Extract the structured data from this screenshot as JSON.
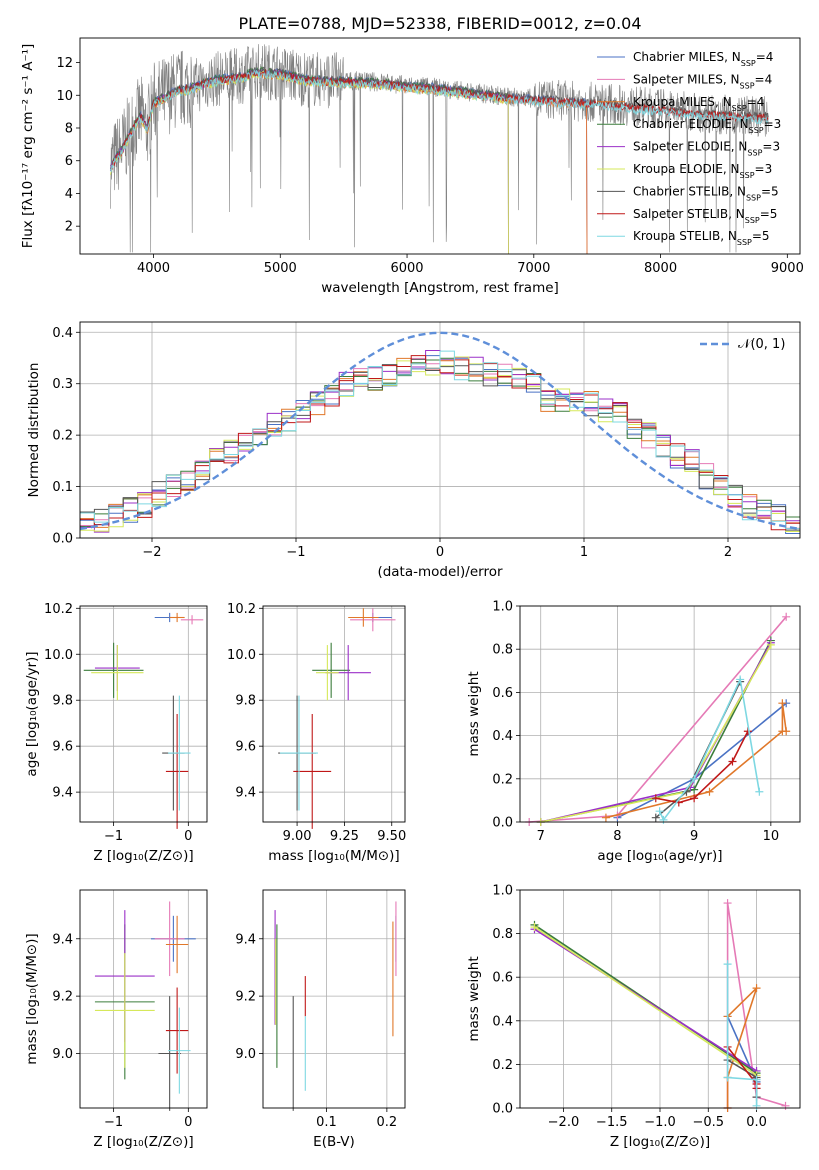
{
  "colors": {
    "Chabrier MILES": "#4a72c4",
    "Salpeter MILES": "#e57ab6",
    "Kroupa MILES": "#e0782a",
    "Chabrier ELODIE": "#3b7d3b",
    "Salpeter ELODIE": "#9b30c8",
    "Kroupa ELODIE": "#d6e85a",
    "Chabrier STELIB": "#555555",
    "Salpeter STELIB": "#c01818",
    "Kroupa STELIB": "#7ed8e2",
    "data": "#808080",
    "normal": "#5f8fd9"
  },
  "chart_data": [
    {
      "type": "line",
      "title": "PLATE=0788, MJD=52338, FIBERID=0012, z=0.04",
      "xlabel": "wavelength [Angstrom, rest frame]",
      "ylabel": "Flux [fλ10⁻¹⁷ erg cm⁻² s⁻¹ A⁻¹]",
      "xlim": [
        3420,
        9100
      ],
      "ylim": [
        0.3,
        13.5
      ],
      "xticks": [
        4000,
        5000,
        6000,
        7000,
        8000,
        9000
      ],
      "yticks": [
        2,
        4,
        6,
        8,
        10,
        12
      ],
      "legend_location": "upper right",
      "series": [
        {
          "name": "Chabrier MILES",
          "nssp": "4"
        },
        {
          "name": "Salpeter MILES",
          "nssp": "4"
        },
        {
          "name": "Kroupa MILES",
          "nssp": "4"
        },
        {
          "name": "Chabrier ELODIE",
          "nssp": "3"
        },
        {
          "name": "Salpeter ELODIE",
          "nssp": "3"
        },
        {
          "name": "Kroupa ELODIE",
          "nssp": "3"
        },
        {
          "name": "Chabrier STELIB",
          "nssp": "5"
        },
        {
          "name": "Salpeter STELIB",
          "nssp": "5"
        },
        {
          "name": "Kroupa STELIB",
          "nssp": "5"
        }
      ],
      "model_continuum": {
        "x": [
          3650,
          3700,
          3750,
          3800,
          3850,
          3900,
          3950,
          4000,
          4100,
          4200,
          4300,
          4400,
          4500,
          4700,
          4800,
          5000,
          5200,
          5500,
          5800,
          6000,
          6200,
          6400,
          6600,
          6800,
          7000,
          7200,
          7400,
          7600,
          7800,
          8000,
          8200,
          8400,
          8600,
          8800
        ],
        "y": [
          5.4,
          6.2,
          6.7,
          7.5,
          8.2,
          8.8,
          8.0,
          9.6,
          10.0,
          10.4,
          10.5,
          10.8,
          11.0,
          11.2,
          11.5,
          11.4,
          11.0,
          10.9,
          10.8,
          10.6,
          10.5,
          10.3,
          10.1,
          9.9,
          9.8,
          9.7,
          9.6,
          9.5,
          9.3,
          9.2,
          9.0,
          8.9,
          8.8,
          8.7
        ]
      }
    },
    {
      "type": "bar",
      "xlabel": "(data-model)/error",
      "ylabel": "Normed distribution",
      "xlim": [
        -2.5,
        2.5
      ],
      "ylim": [
        0,
        0.42
      ],
      "xticks": [
        -2,
        -1,
        0,
        1,
        2
      ],
      "yticks": [
        0.0,
        0.1,
        0.2,
        0.3,
        0.4
      ],
      "reference_curve": "𝒩(0, 1)",
      "bin_width": 0.1,
      "histogram_centers": [
        -2.45,
        -2.35,
        -2.25,
        -2.15,
        -2.05,
        -1.95,
        -1.85,
        -1.75,
        -1.65,
        -1.55,
        -1.45,
        -1.35,
        -1.25,
        -1.15,
        -1.05,
        -0.95,
        -0.85,
        -0.75,
        -0.65,
        -0.55,
        -0.45,
        -0.35,
        -0.25,
        -0.15,
        -0.05,
        0.05,
        0.15,
        0.25,
        0.35,
        0.45,
        0.55,
        0.65,
        0.75,
        0.85,
        0.95,
        1.05,
        1.15,
        1.25,
        1.35,
        1.45,
        1.55,
        1.65,
        1.75,
        1.85,
        1.95,
        2.05,
        2.15,
        2.25,
        2.35,
        2.45
      ],
      "histogram_values": [
        0.03,
        0.035,
        0.045,
        0.055,
        0.065,
        0.085,
        0.1,
        0.11,
        0.13,
        0.15,
        0.17,
        0.19,
        0.2,
        0.22,
        0.23,
        0.25,
        0.26,
        0.28,
        0.3,
        0.31,
        0.31,
        0.32,
        0.33,
        0.34,
        0.34,
        0.34,
        0.33,
        0.33,
        0.32,
        0.32,
        0.31,
        0.3,
        0.27,
        0.27,
        0.26,
        0.26,
        0.25,
        0.24,
        0.21,
        0.2,
        0.18,
        0.16,
        0.15,
        0.12,
        0.1,
        0.08,
        0.06,
        0.05,
        0.04,
        0.03
      ]
    },
    {
      "type": "scatter",
      "xlabel": "Z [log₁₀(Z/Z⊙)]",
      "ylabel": "age  [log₁₀(age/yr)]",
      "xlim": [
        -1.45,
        0.25
      ],
      "ylim": [
        9.27,
        10.21
      ],
      "xticks": [
        -1,
        0
      ],
      "yticks": [
        9.4,
        9.6,
        9.8,
        10.0,
        10.2
      ],
      "points": [
        {
          "series": "Chabrier MILES",
          "x": -0.25,
          "y": 10.16,
          "xerr": 0.2,
          "yerr": 0.02
        },
        {
          "series": "Salpeter MILES",
          "x": 0.05,
          "y": 10.15,
          "xerr": 0.15,
          "yerr": 0.02
        },
        {
          "series": "Kroupa MILES",
          "x": -0.15,
          "y": 10.16,
          "xerr": 0.1,
          "yerr": 0.02
        },
        {
          "series": "Chabrier ELODIE",
          "x": -1.0,
          "y": 9.93,
          "xerr": 0.4,
          "yerr": 0.12
        },
        {
          "series": "Salpeter ELODIE",
          "x": -0.95,
          "y": 9.94,
          "xerr": 0.3,
          "yerr": 0.1
        },
        {
          "series": "Kroupa ELODIE",
          "x": -0.95,
          "y": 9.92,
          "xerr": 0.35,
          "yerr": 0.12
        },
        {
          "series": "Chabrier STELIB",
          "x": -0.2,
          "y": 9.57,
          "xerr": 0.15,
          "yerr": 0.25
        },
        {
          "series": "Salpeter STELIB",
          "x": -0.15,
          "y": 9.49,
          "xerr": 0.15,
          "yerr": 0.25
        },
        {
          "series": "Kroupa STELIB",
          "x": -0.12,
          "y": 9.57,
          "xerr": 0.15,
          "yerr": 0.25
        }
      ]
    },
    {
      "type": "scatter",
      "xlabel": "mass [log₁₀(M/M⊙)]",
      "ylabel": "",
      "xlim": [
        8.82,
        9.57
      ],
      "ylim": [
        9.27,
        10.21
      ],
      "xticks": [
        9.0,
        9.25,
        9.5
      ],
      "yticks": [
        9.4,
        9.6,
        9.8,
        10.0,
        10.2
      ],
      "points": [
        {
          "series": "Chabrier MILES",
          "x": 9.4,
          "y": 10.16,
          "xerr": 0.1,
          "yerr": 0.02
        },
        {
          "series": "Salpeter MILES",
          "x": 9.4,
          "y": 10.15,
          "xerr": 0.12,
          "yerr": 0.05
        },
        {
          "series": "Kroupa MILES",
          "x": 9.35,
          "y": 10.16,
          "xerr": 0.08,
          "yerr": 0.04
        },
        {
          "series": "Chabrier ELODIE",
          "x": 9.18,
          "y": 9.93,
          "xerr": 0.1,
          "yerr": 0.12
        },
        {
          "series": "Salpeter ELODIE",
          "x": 9.27,
          "y": 9.92,
          "xerr": 0.12,
          "yerr": 0.12
        },
        {
          "series": "Kroupa ELODIE",
          "x": 9.16,
          "y": 9.92,
          "xerr": 0.06,
          "yerr": 0.12
        },
        {
          "series": "Chabrier STELIB",
          "x": 9.0,
          "y": 9.57,
          "xerr": 0.1,
          "yerr": 0.25
        },
        {
          "series": "Salpeter STELIB",
          "x": 9.08,
          "y": 9.49,
          "xerr": 0.1,
          "yerr": 0.25
        },
        {
          "series": "Kroupa STELIB",
          "x": 9.01,
          "y": 9.57,
          "xerr": 0.1,
          "yerr": 0.25
        }
      ]
    },
    {
      "type": "line",
      "xlabel": "age  [log₁₀(age/yr)]",
      "ylabel": "mass weight",
      "xlim": [
        6.73,
        10.38
      ],
      "ylim": [
        0,
        1.0
      ],
      "xticks": [
        7,
        8,
        9,
        10
      ],
      "yticks": [
        0.0,
        0.2,
        0.4,
        0.6,
        0.8,
        1.0
      ],
      "series": [
        {
          "name": "Chabrier MILES",
          "x": [
            8.0,
            9.0,
            10.2
          ],
          "y": [
            0.02,
            0.2,
            0.55
          ]
        },
        {
          "name": "Salpeter MILES",
          "x": [
            6.85,
            8.0,
            10.2
          ],
          "y": [
            0.0,
            0.03,
            0.95
          ]
        },
        {
          "name": "Kroupa MILES",
          "x": [
            7.85,
            9.2,
            10.15,
            10.15,
            10.2
          ],
          "y": [
            0.02,
            0.14,
            0.42,
            0.55,
            0.42
          ]
        },
        {
          "name": "Chabrier ELODIE",
          "x": [
            7.0,
            9.0,
            10.0
          ],
          "y": [
            0.0,
            0.15,
            0.84
          ]
        },
        {
          "name": "Salpeter ELODIE",
          "x": [
            7.0,
            8.95,
            10.0
          ],
          "y": [
            0.0,
            0.16,
            0.83
          ]
        },
        {
          "name": "Kroupa ELODIE",
          "x": [
            7.0,
            8.9,
            10.0
          ],
          "y": [
            0.0,
            0.14,
            0.82
          ]
        },
        {
          "name": "Chabrier STELIB",
          "x": [
            8.5,
            8.9,
            9.6
          ],
          "y": [
            0.02,
            0.14,
            0.65
          ]
        },
        {
          "name": "Salpeter STELIB",
          "x": [
            8.5,
            8.8,
            9.0,
            9.5,
            9.7
          ],
          "y": [
            0.11,
            0.09,
            0.11,
            0.28,
            0.42
          ]
        },
        {
          "name": "Kroupa STELIB",
          "x": [
            8.55,
            8.6,
            9.0,
            9.6,
            9.85
          ],
          "y": [
            0.05,
            0.01,
            0.2,
            0.66,
            0.14
          ]
        }
      ]
    },
    {
      "type": "scatter",
      "xlabel": "Z [log₁₀(Z/Z⊙)]",
      "ylabel": "mass [log₁₀(M/M⊙)]",
      "xlim": [
        -1.45,
        0.25
      ],
      "ylim": [
        8.81,
        9.57
      ],
      "xticks": [
        -1,
        0
      ],
      "yticks": [
        9.0,
        9.2,
        9.4
      ],
      "points": [
        {
          "series": "Chabrier MILES",
          "x": -0.2,
          "y": 9.4,
          "xerr": 0.3,
          "yerr": 0.08
        },
        {
          "series": "Salpeter MILES",
          "x": -0.25,
          "y": 9.4,
          "xerr": 0.2,
          "yerr": 0.13
        },
        {
          "series": "Kroupa MILES",
          "x": -0.15,
          "y": 9.38,
          "xerr": 0.15,
          "yerr": 0.1
        },
        {
          "series": "Chabrier ELODIE",
          "x": -0.85,
          "y": 9.18,
          "xerr": 0.4,
          "yerr": 0.27
        },
        {
          "series": "Salpeter ELODIE",
          "x": -0.85,
          "y": 9.27,
          "xerr": 0.4,
          "yerr": 0.23
        },
        {
          "series": "Kroupa ELODIE",
          "x": -0.85,
          "y": 9.15,
          "xerr": 0.4,
          "yerr": 0.2
        },
        {
          "series": "Chabrier STELIB",
          "x": -0.25,
          "y": 9.0,
          "xerr": 0.15,
          "yerr": 0.2
        },
        {
          "series": "Salpeter STELIB",
          "x": -0.15,
          "y": 9.08,
          "xerr": 0.15,
          "yerr": 0.15
        },
        {
          "series": "Kroupa STELIB",
          "x": -0.12,
          "y": 9.01,
          "xerr": 0.15,
          "yerr": 0.15
        }
      ]
    },
    {
      "type": "scatter",
      "xlabel": "E(B-V)",
      "ylabel": "",
      "xlim": [
        -0.005,
        0.23
      ],
      "ylim": [
        8.81,
        9.57
      ],
      "xticks": [
        0.1,
        0.2
      ],
      "yticks": [
        9.0,
        9.2,
        9.4
      ],
      "points": [
        {
          "series": "Chabrier MILES",
          "x": 0.215,
          "y": 9.4,
          "yerr": 0.08
        },
        {
          "series": "Salpeter MILES",
          "x": 0.215,
          "y": 9.4,
          "yerr": 0.13
        },
        {
          "series": "Kroupa MILES",
          "x": 0.21,
          "y": 9.26,
          "yerr": 0.2
        },
        {
          "series": "Chabrier ELODIE",
          "x": 0.018,
          "y": 9.2,
          "yerr": 0.25
        },
        {
          "series": "Salpeter ELODIE",
          "x": 0.015,
          "y": 9.3,
          "yerr": 0.2
        },
        {
          "series": "Kroupa ELODIE",
          "x": 0.016,
          "y": 9.25,
          "yerr": 0.15
        },
        {
          "series": "Chabrier STELIB",
          "x": 0.045,
          "y": 9.0,
          "yerr": 0.2
        },
        {
          "series": "Salpeter STELIB",
          "x": 0.065,
          "y": 9.2,
          "yerr": 0.07
        },
        {
          "series": "Kroupa STELIB",
          "x": 0.065,
          "y": 9.0,
          "yerr": 0.13
        }
      ]
    },
    {
      "type": "line",
      "xlabel": "Z [log₁₀(Z/Z⊙)]",
      "ylabel": "mass weight",
      "xlim": [
        -2.45,
        0.45
      ],
      "ylim": [
        0,
        1.0
      ],
      "xticks": [
        -2.0,
        -1.5,
        -1.0,
        -0.5,
        0.0
      ],
      "yticks": [
        0.0,
        0.2,
        0.4,
        0.6,
        0.8,
        1.0
      ],
      "series": [
        {
          "name": "Chabrier MILES",
          "x": [
            -0.3,
            0.0
          ],
          "y": [
            0.42,
            0.12
          ]
        },
        {
          "name": "Salpeter MILES",
          "x": [
            -0.3,
            -0.3,
            0.0,
            0.3
          ],
          "y": [
            0.0,
            0.94,
            0.05,
            0.01
          ]
        },
        {
          "name": "Kroupa MILES",
          "x": [
            -0.3,
            0.0,
            -0.3,
            -0.3
          ],
          "y": [
            0.42,
            0.55,
            0.14,
            0.0
          ]
        },
        {
          "name": "Chabrier ELODIE",
          "x": [
            -2.3,
            0.0
          ],
          "y": [
            0.84,
            0.16
          ]
        },
        {
          "name": "Salpeter ELODIE",
          "x": [
            -2.3,
            0.0
          ],
          "y": [
            0.82,
            0.17
          ]
        },
        {
          "name": "Kroupa ELODIE",
          "x": [
            -2.3,
            0.0
          ],
          "y": [
            0.83,
            0.15
          ]
        },
        {
          "name": "Chabrier STELIB",
          "x": [
            -0.3,
            0.0,
            0.0
          ],
          "y": [
            0.22,
            0.14,
            0.05
          ]
        },
        {
          "name": "Salpeter STELIB",
          "x": [
            -0.3,
            0.0,
            0.0
          ],
          "y": [
            0.28,
            0.11,
            0.09
          ]
        },
        {
          "name": "Kroupa STELIB",
          "x": [
            -0.3,
            -0.3,
            0.0,
            0.0
          ],
          "y": [
            0.66,
            0.14,
            0.13,
            0.01
          ]
        }
      ]
    }
  ]
}
